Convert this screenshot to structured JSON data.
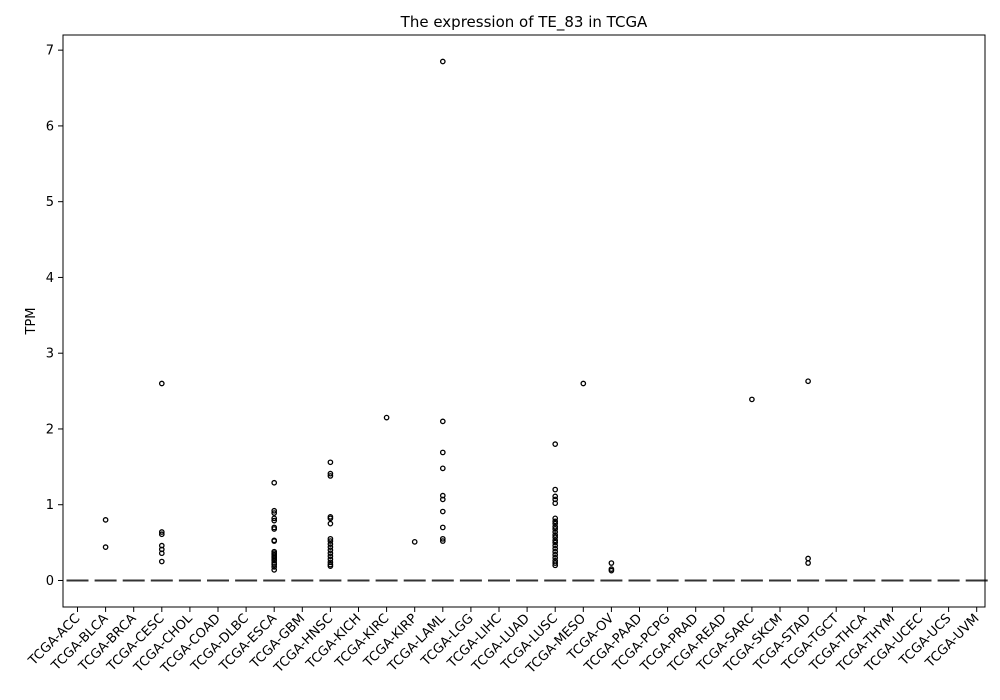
{
  "chart_data": {
    "type": "box",
    "title": "The expression of TE_83 in TCGA",
    "xlabel": "",
    "ylabel": "TPM",
    "ylim": [
      -0.35,
      7.2
    ],
    "yticks": [
      0,
      1,
      2,
      3,
      4,
      5,
      6,
      7
    ],
    "grid": false,
    "categories": [
      "TCGA-ACC",
      "TCGA-BLCA",
      "TCGA-BRCA",
      "TCGA-CESC",
      "TCGA-CHOL",
      "TCGA-COAD",
      "TCGA-DLBC",
      "TCGA-ESCA",
      "TCGA-GBM",
      "TCGA-HNSC",
      "TCGA-KICH",
      "TCGA-KIRC",
      "TCGA-KIRP",
      "TCGA-LAML",
      "TCGA-LGG",
      "TCGA-LIHC",
      "TCGA-LUAD",
      "TCGA-LUSC",
      "TCGA-MESO",
      "TCGA-OV",
      "TCGA-PAAD",
      "TCGA-PCPG",
      "TCGA-PRAD",
      "TCGA-READ",
      "TCGA-SARC",
      "TCGA-SKCM",
      "TCGA-STAD",
      "TCGA-TGCT",
      "TCGA-THCA",
      "TCGA-THYM",
      "TCGA-UCEC",
      "TCGA-UCS",
      "TCGA-UVM"
    ],
    "medians": [
      0,
      0,
      0,
      0,
      0,
      0,
      0,
      0,
      0,
      0,
      0,
      0,
      0,
      0,
      0,
      0,
      0,
      0,
      0,
      0,
      0,
      0,
      0,
      0,
      0,
      0,
      0,
      0,
      0,
      0,
      0,
      0,
      0
    ],
    "outliers": [
      [],
      [
        0.8,
        0.44
      ],
      [],
      [
        2.6,
        0.64,
        0.61,
        0.46,
        0.41,
        0.36,
        0.25
      ],
      [],
      [],
      [],
      [
        1.29,
        0.92,
        0.89,
        0.82,
        0.79,
        0.7,
        0.68,
        0.53,
        0.52,
        0.38,
        0.36,
        0.34,
        0.32,
        0.3,
        0.28,
        0.26,
        0.23,
        0.21,
        0.18,
        0.14
      ],
      [],
      [
        1.56,
        1.41,
        1.38,
        0.84,
        0.82,
        0.75,
        0.55,
        0.52,
        0.48,
        0.44,
        0.4,
        0.36,
        0.32,
        0.28,
        0.24,
        0.21,
        0.19
      ],
      [],
      [
        2.15
      ],
      [
        0.51
      ],
      [
        6.85,
        2.1,
        1.69,
        1.48,
        1.12,
        1.07,
        0.91,
        0.7,
        0.55,
        0.52
      ],
      [],
      [],
      [],
      [
        1.8,
        1.2,
        1.11,
        1.07,
        1.02,
        0.82,
        0.78,
        0.75,
        0.71,
        0.68,
        0.64,
        0.6,
        0.57,
        0.53,
        0.5,
        0.46,
        0.42,
        0.38,
        0.34,
        0.3,
        0.26,
        0.23,
        0.2
      ],
      [
        2.6
      ],
      [
        0.23,
        0.15,
        0.13
      ],
      [],
      [],
      [],
      [],
      [
        2.39
      ],
      [],
      [
        2.63,
        0.29,
        0.23
      ],
      [],
      [],
      [],
      [],
      [],
      []
    ]
  }
}
